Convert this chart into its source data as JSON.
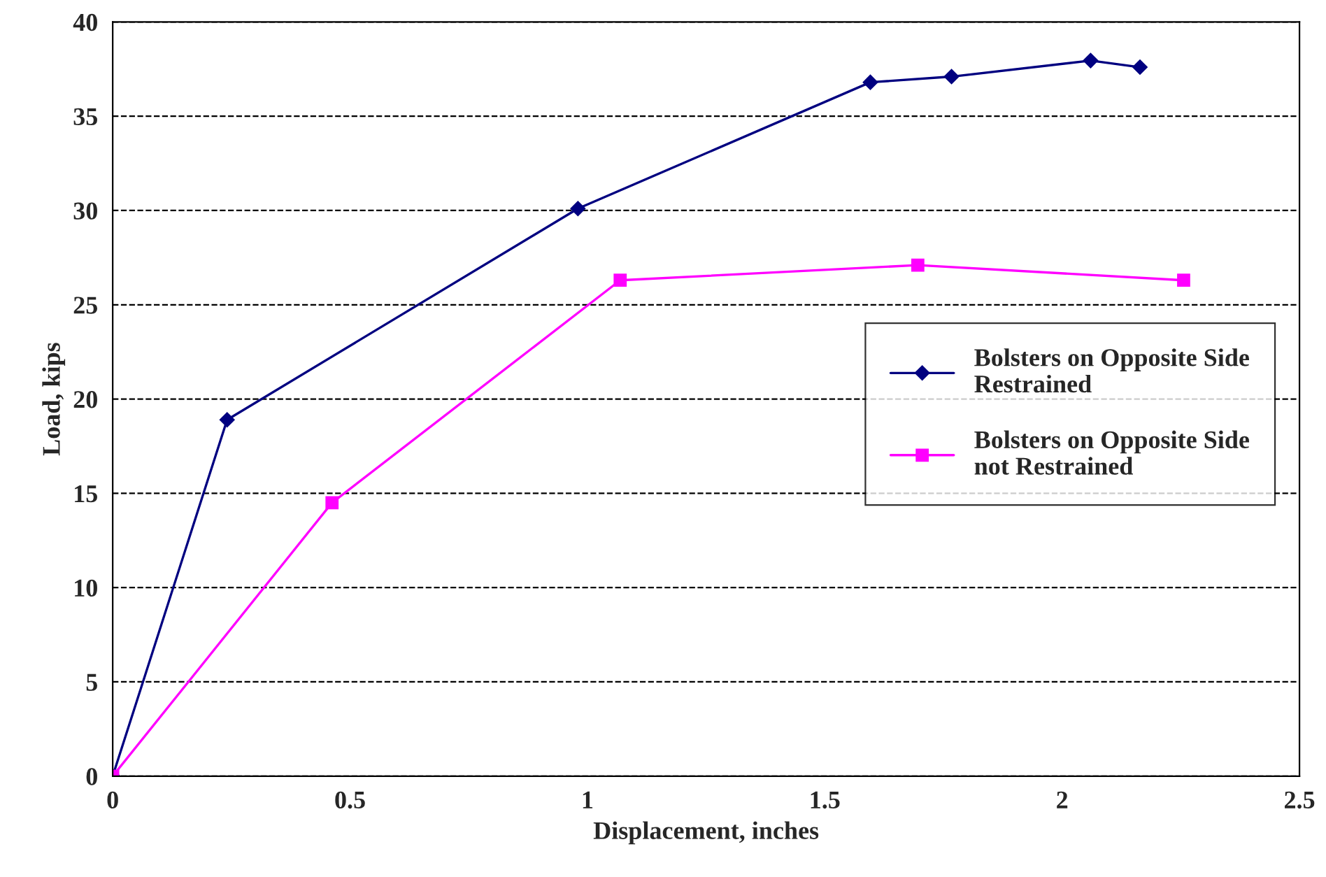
{
  "chart_data": {
    "type": "line",
    "xlabel": "Displacement, inches",
    "ylabel": "Load, kips",
    "xlim": [
      0,
      2.5
    ],
    "xticks": [
      0,
      0.5,
      1,
      1.5,
      2,
      2.5
    ],
    "ylim": [
      0,
      40
    ],
    "yticks": [
      0,
      5,
      10,
      15,
      20,
      25,
      30,
      35,
      40
    ],
    "grid": "y",
    "legend": "right",
    "series": [
      {
        "name": "Bolsters on Opposite Side\nRestrained",
        "color": "#000080",
        "marker": "diamond",
        "x": [
          0,
          0.241,
          0.98,
          1.596,
          1.767,
          2.06,
          2.164
        ],
        "values": [
          0,
          18.9,
          30.1,
          36.8,
          37.1,
          37.95,
          37.6
        ]
      },
      {
        "name": "Bolsters on Opposite Side\nnot Restrained",
        "color": "#ff00ff",
        "marker": "square",
        "x": [
          0,
          0.462,
          1.069,
          1.696,
          2.256
        ],
        "values": [
          0,
          14.5,
          26.3,
          27.1,
          26.3
        ]
      }
    ]
  }
}
